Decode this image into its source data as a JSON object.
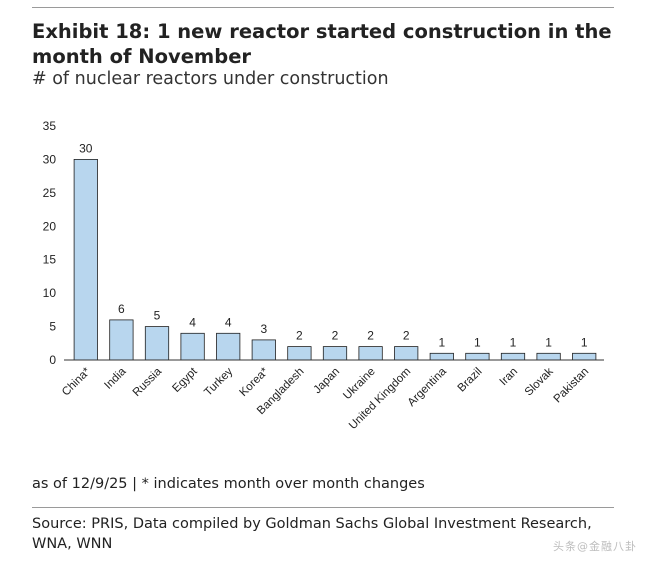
{
  "header": {
    "title": "Exhibit 18: 1 new reactor started construction in the month of November",
    "subtitle": "# of nuclear reactors under construction"
  },
  "footer": {
    "as_of": "as of 12/9/25 | * indicates month over month changes",
    "source": "Source: PRIS, Data compiled by Goldman Sachs Global Investment Research, WNA, WNN",
    "watermark": "头条@金融八卦"
  },
  "colors": {
    "bar_fill": "#b8d6ee",
    "bar_stroke": "#1f1f1f",
    "axis": "#333333"
  },
  "chart_data": {
    "type": "bar",
    "title": "Exhibit 18: 1 new reactor started construction in the month of November",
    "subtitle": "# of nuclear reactors under construction",
    "xlabel": "",
    "ylabel": "",
    "categories": [
      "China*",
      "India",
      "Russia",
      "Egypt",
      "Turkey",
      "Korea*",
      "Bangladesh",
      "Japan",
      "Ukraine",
      "United Kingdom",
      "Argentina",
      "Brazil",
      "Iran",
      "Slovak",
      "Pakistan"
    ],
    "values": [
      30,
      6,
      5,
      4,
      4,
      3,
      2,
      2,
      2,
      2,
      1,
      1,
      1,
      1,
      1
    ],
    "ylim": [
      0,
      35
    ],
    "yticks": [
      0,
      5,
      10,
      15,
      20,
      25,
      30,
      35
    ],
    "data_labels": true,
    "grid": false,
    "legend": "none"
  }
}
